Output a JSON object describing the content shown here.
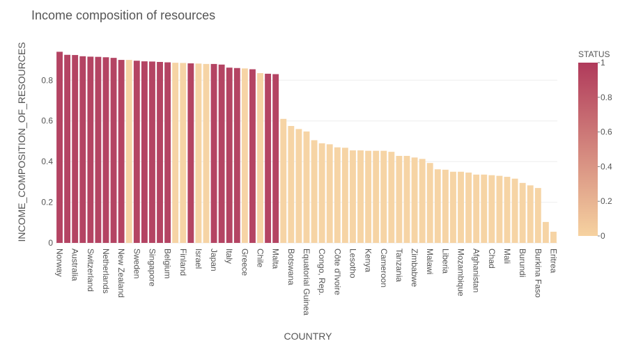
{
  "chart_data": {
    "type": "bar",
    "title": "Income composition of resources",
    "x_label": "COUNTRY",
    "y_label": "INCOME_COMPOSITION_OF_RESOURCES",
    "colorbar_title": "STATUS",
    "colorscale": [
      "#f6d2a0",
      "#b03a5b"
    ],
    "categories": [
      "Norway",
      null,
      "Australia",
      null,
      "Switzerland",
      null,
      "Netherlands",
      null,
      "New Zealand",
      null,
      "Sweden",
      null,
      "Singapore",
      null,
      "Belgium",
      null,
      "Finland",
      null,
      "Israel",
      null,
      "Japan",
      null,
      "Italy",
      null,
      "Greece",
      null,
      "Chile",
      null,
      "Malta",
      null,
      "Botswana",
      null,
      "Equatorial Guinea",
      null,
      "Congo, Rep.",
      null,
      "Côte d'Ivoire",
      null,
      "Lesotho",
      null,
      "Kenya",
      null,
      "Cameroon",
      null,
      "Tanzania",
      null,
      "Zimbabwe",
      null,
      "Malawi",
      null,
      "Liberia",
      null,
      "Mozambique",
      null,
      "Afghanistan",
      null,
      "Chad",
      null,
      "Mali",
      null,
      "Burundi",
      null,
      "Burkina Faso",
      null,
      "Eritrea"
    ],
    "values": [
      0.94,
      0.925,
      0.924,
      0.918,
      0.916,
      0.915,
      0.913,
      0.91,
      0.9,
      0.9,
      0.896,
      0.893,
      0.892,
      0.89,
      0.888,
      0.886,
      0.885,
      0.883,
      0.882,
      0.88,
      0.88,
      0.877,
      0.862,
      0.86,
      0.858,
      0.854,
      0.835,
      0.832,
      0.83,
      0.61,
      0.575,
      0.56,
      0.548,
      0.505,
      0.49,
      0.485,
      0.47,
      0.468,
      0.455,
      0.455,
      0.453,
      0.453,
      0.453,
      0.448,
      0.428,
      0.428,
      0.42,
      0.413,
      0.393,
      0.362,
      0.36,
      0.35,
      0.35,
      0.346,
      0.336,
      0.336,
      0.333,
      0.33,
      0.325,
      0.316,
      0.295,
      0.283,
      0.27,
      0.103,
      0.055
    ],
    "status": [
      1,
      1,
      1,
      1,
      1,
      1,
      1,
      1,
      1,
      0,
      1,
      1,
      1,
      1,
      1,
      0,
      0,
      1,
      0,
      0,
      1,
      1,
      1,
      1,
      0,
      1,
      0,
      1,
      1,
      0,
      0,
      0,
      0,
      0,
      0,
      0,
      0,
      0,
      0,
      0,
      0,
      0,
      0,
      0,
      0,
      0,
      0,
      0,
      0,
      0,
      0,
      0,
      0,
      0,
      0,
      0,
      0,
      0,
      0,
      0,
      0,
      0,
      0,
      0,
      0
    ],
    "ylim": [
      0,
      0.955
    ],
    "yticks": [
      0,
      0.2,
      0.4,
      0.6,
      0.8
    ],
    "colorbar_lim": [
      0,
      1
    ],
    "colorbar_ticks": [
      0,
      0.2,
      0.4,
      0.6,
      0.8,
      1
    ],
    "grid": true
  }
}
